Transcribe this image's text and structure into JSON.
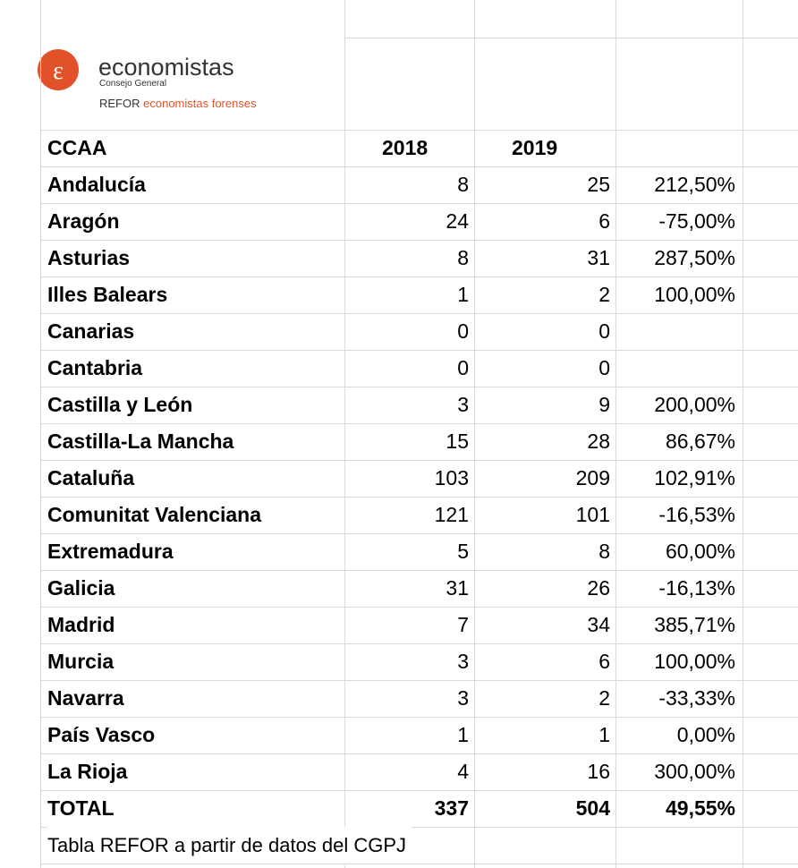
{
  "logo": {
    "name": "economistas",
    "subtitle": "Consejo General",
    "tagline_prefix": "REFOR",
    "tagline": "economistas forenses"
  },
  "table": {
    "header": [
      "CCAA",
      "2018",
      "2019"
    ],
    "rows": [
      [
        "Andalucía",
        8,
        25,
        "212,50%"
      ],
      [
        "Aragón",
        24,
        6,
        "-75,00%"
      ],
      [
        "Asturias",
        8,
        31,
        "287,50%"
      ],
      [
        "Illes Balears",
        1,
        2,
        "100,00%"
      ],
      [
        "Canarias",
        0,
        0,
        null
      ],
      [
        "Cantabria",
        0,
        0,
        null
      ],
      [
        "Castilla y León",
        3,
        9,
        "200,00%"
      ],
      [
        "Castilla-La Mancha",
        15,
        28,
        "86,67%"
      ],
      [
        "Cataluña",
        103,
        209,
        "102,91%"
      ],
      [
        "Comunitat Valenciana",
        121,
        101,
        "-16,53%"
      ],
      [
        "Extremadura",
        5,
        8,
        "60,00%"
      ],
      [
        "Galicia",
        31,
        26,
        "-16,13%"
      ],
      [
        "Madrid",
        7,
        34,
        "385,71%"
      ],
      [
        "Murcia",
        3,
        6,
        "100,00%"
      ],
      [
        "Navarra",
        3,
        2,
        "-33,33%"
      ],
      [
        "País Vasco",
        1,
        1,
        "0,00%"
      ],
      [
        "La Rioja",
        4,
        16,
        "300,00%"
      ]
    ],
    "total": [
      "TOTAL",
      337,
      504,
      "49,55%"
    ],
    "footer": "Tabla REFOR a partir de datos del CGPJ"
  }
}
